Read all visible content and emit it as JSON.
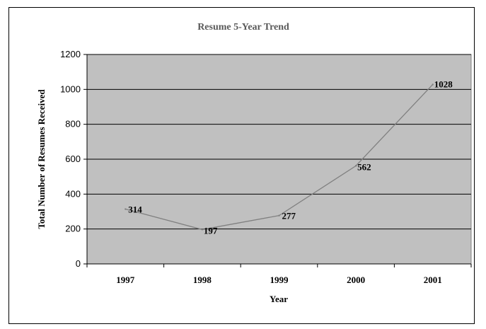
{
  "chart_data": {
    "type": "line",
    "title": "Resume 5-Year Trend",
    "xlabel": "Year",
    "ylabel": "Total Number of Resumes Received",
    "categories": [
      "1997",
      "1998",
      "1999",
      "2000",
      "2001"
    ],
    "series": [
      {
        "values": [
          314,
          197,
          277,
          562,
          1028
        ]
      }
    ],
    "data_labels": [
      "314",
      "197",
      "277",
      "562",
      "1028"
    ],
    "ylim": [
      0,
      1200
    ],
    "yticks": [
      "0",
      "200",
      "400",
      "600",
      "800",
      "1000",
      "1200"
    ],
    "grid": true,
    "colors": {
      "plot_background": "#c0c0c0",
      "line": "#808080",
      "gridline": "#000000",
      "title": "#595959"
    }
  }
}
